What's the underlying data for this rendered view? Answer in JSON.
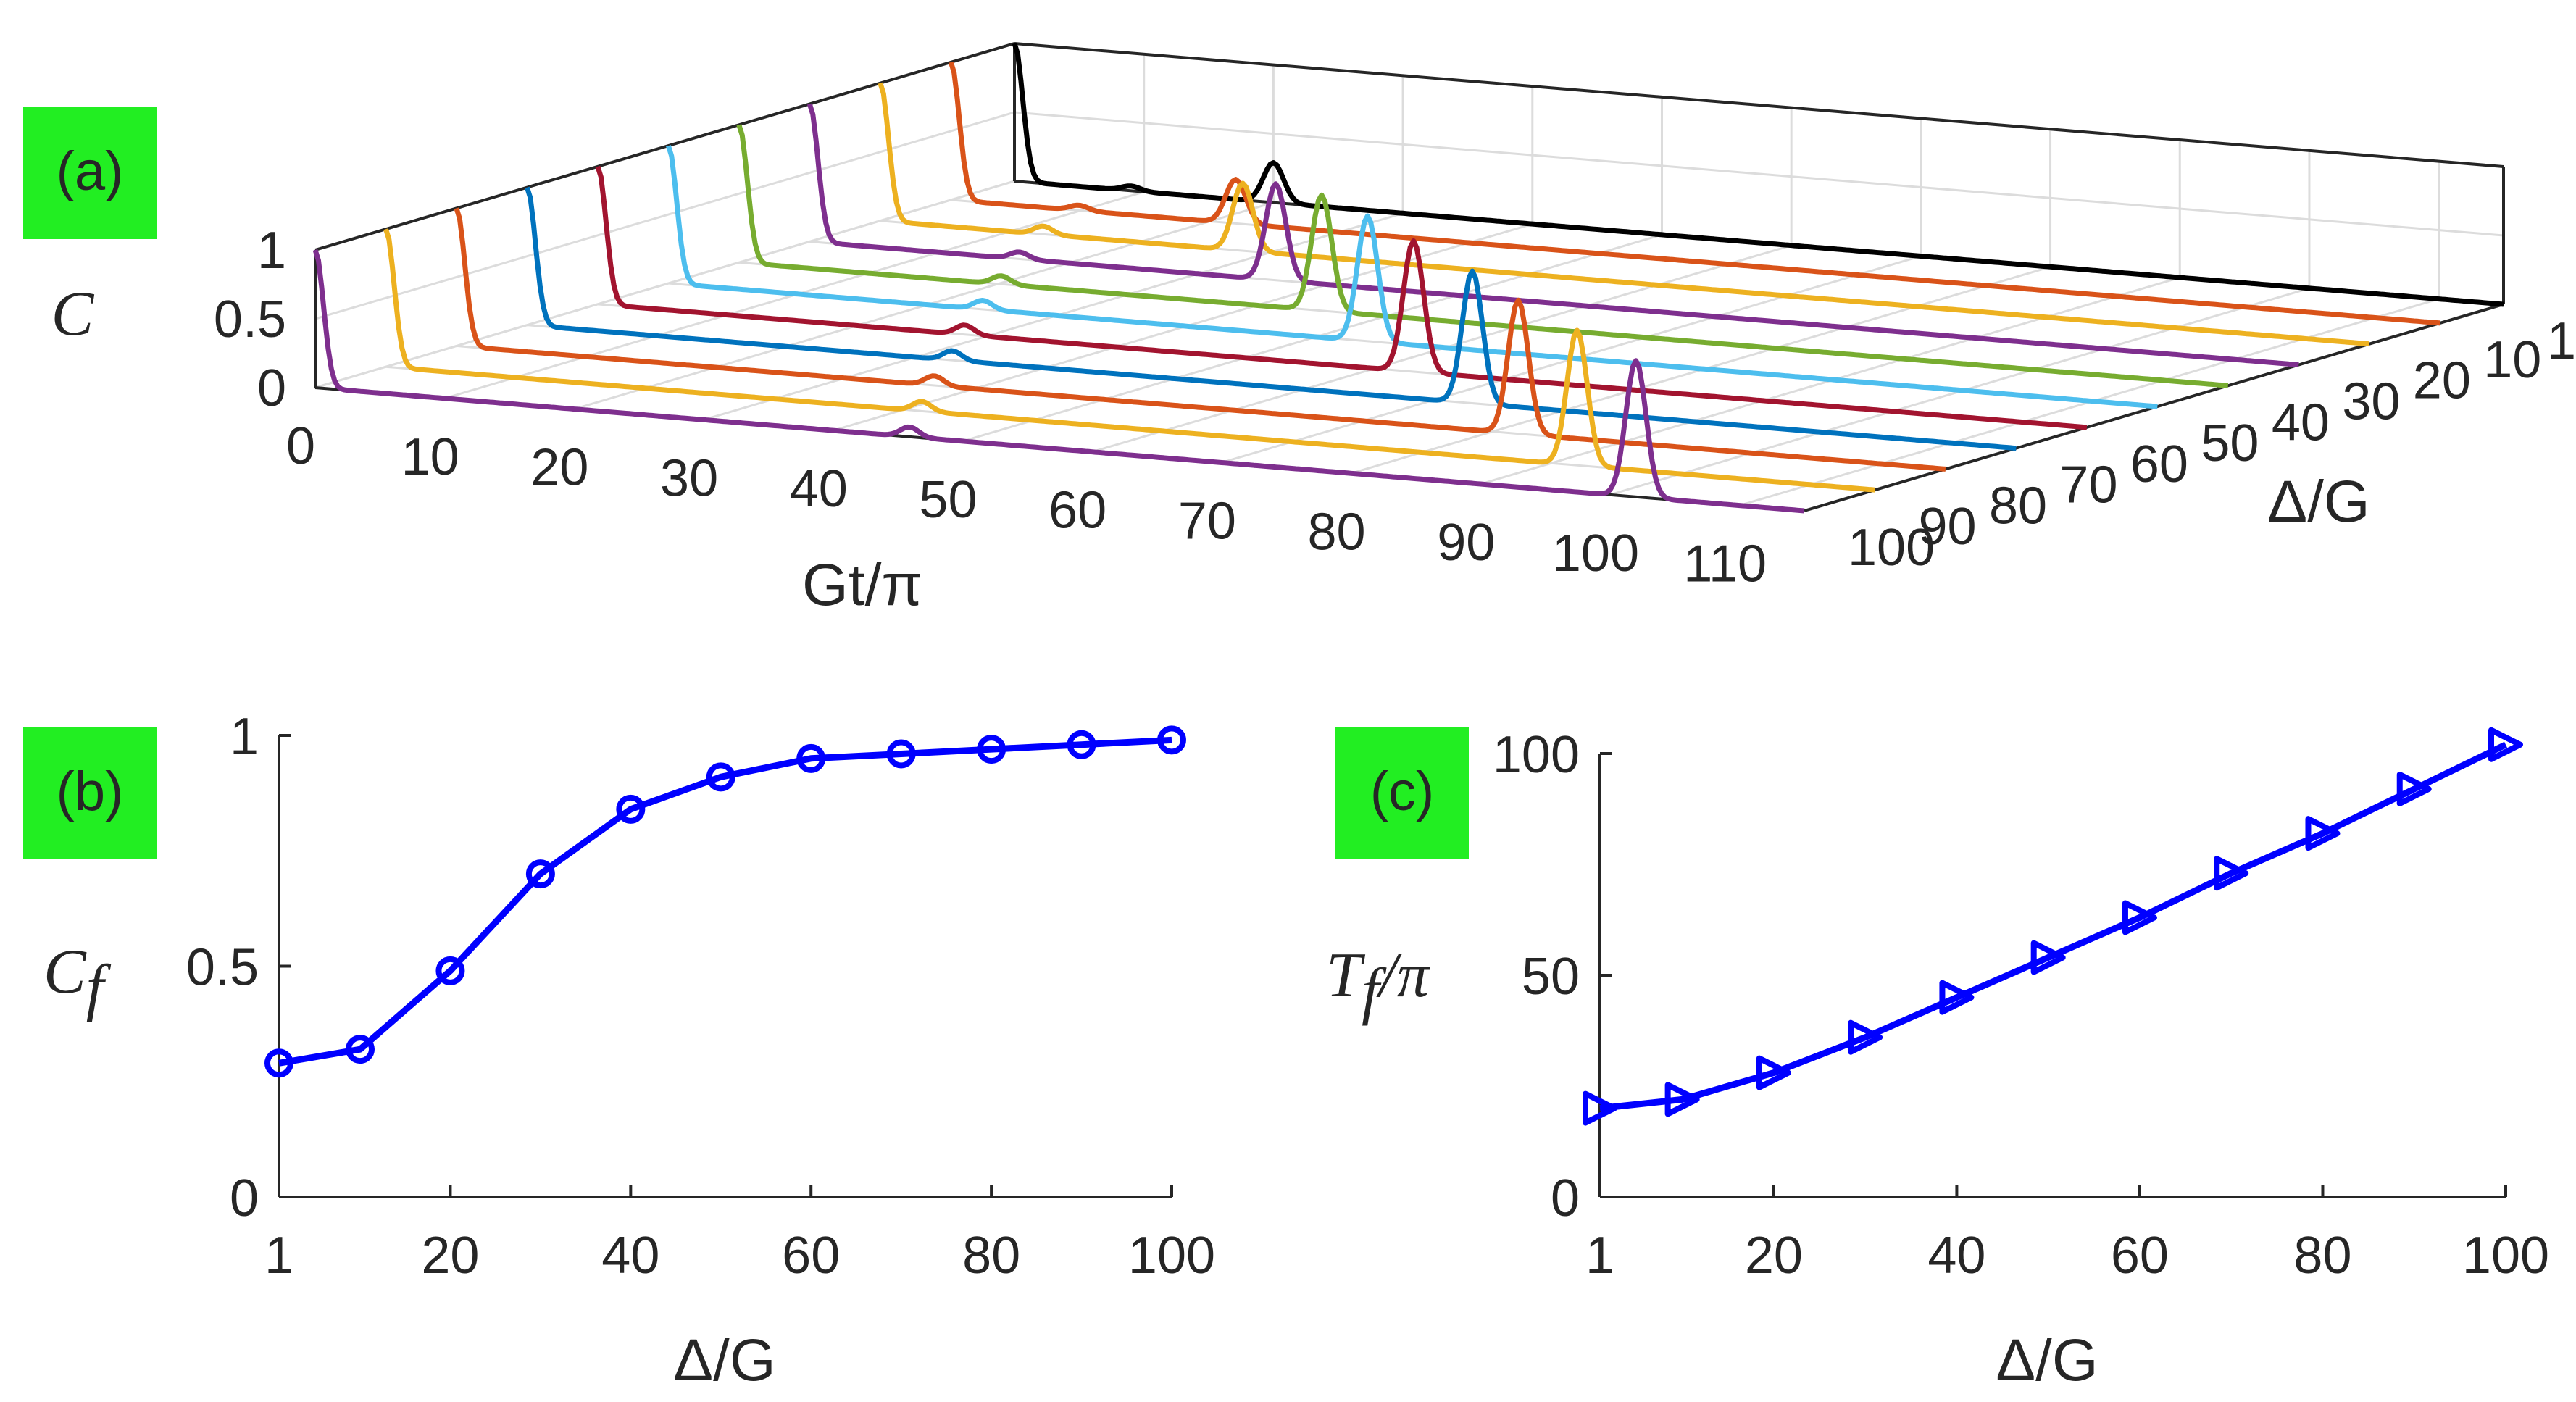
{
  "colors": {
    "marker": "#0000ff",
    "tag_bg": "#22ee22",
    "axis": "#262626",
    "grid": "#dcdcdc",
    "series_palette": [
      "#7e2f8e",
      "#edb120",
      "#d95319",
      "#0072bd",
      "#a2142f",
      "#4dbeee",
      "#77ac30",
      "#7e2f8e",
      "#edb120",
      "#d95319",
      "#000000"
    ]
  },
  "chart_data": [
    {
      "id": "a",
      "type": "line3d",
      "panel_label": "(a)",
      "xlabel": "Gt/π",
      "ylabel": "Δ/G",
      "zlabel": "C",
      "xlim": [
        0,
        115
      ],
      "zlim": [
        0,
        1
      ],
      "x_ticks": [
        0,
        10,
        20,
        30,
        40,
        50,
        60,
        70,
        80,
        90,
        100,
        110
      ],
      "x_tick_labels": [
        "0",
        "10",
        "20",
        "30",
        "40",
        "50",
        "60",
        "70",
        "80",
        "90",
        "100",
        "110"
      ],
      "y_ticks": [
        1,
        10,
        20,
        30,
        40,
        50,
        60,
        70,
        80,
        90,
        100
      ],
      "y_tick_labels": [
        "1",
        "10",
        "20",
        "30",
        "40",
        "50",
        "60",
        "70",
        "80",
        "90",
        "100"
      ],
      "z_ticks": [
        0,
        0.5,
        1
      ],
      "z_tick_labels": [
        "0",
        "0.5",
        "1"
      ],
      "series": [
        {
          "delta": 100,
          "color": "#7e2f8e",
          "peak_t": 102,
          "peak_c": 0.99
        },
        {
          "delta": 90,
          "color": "#edb120",
          "peak_t": 92,
          "peak_c": 0.98
        },
        {
          "delta": 80,
          "color": "#d95319",
          "peak_t": 82,
          "peak_c": 0.97
        },
        {
          "delta": 70,
          "color": "#0072bd",
          "peak_t": 73,
          "peak_c": 0.96
        },
        {
          "delta": 60,
          "color": "#a2142f",
          "peak_t": 63,
          "peak_c": 0.95
        },
        {
          "delta": 50,
          "color": "#4dbeee",
          "peak_t": 54,
          "peak_c": 0.91
        },
        {
          "delta": 40,
          "color": "#77ac30",
          "peak_t": 45,
          "peak_c": 0.84
        },
        {
          "delta": 30,
          "color": "#7e2f8e",
          "peak_t": 36,
          "peak_c": 0.7
        },
        {
          "delta": 20,
          "color": "#edb120",
          "peak_t": 28,
          "peak_c": 0.49
        },
        {
          "delta": 10,
          "color": "#d95319",
          "peak_t": 22,
          "peak_c": 0.32
        },
        {
          "delta": 1,
          "color": "#000000",
          "peak_t": 20,
          "peak_c": 0.29
        }
      ]
    },
    {
      "id": "b",
      "type": "line",
      "panel_label": "(b)",
      "xlabel": "Δ/G",
      "ylabel": "C",
      "ylabel_sub": "f",
      "xlim": [
        1,
        100
      ],
      "ylim": [
        0,
        1
      ],
      "x_ticks": [
        1,
        20,
        40,
        60,
        80,
        100
      ],
      "x_tick_labels": [
        "1",
        "20",
        "40",
        "60",
        "80",
        "100"
      ],
      "y_ticks": [
        0,
        0.5,
        1
      ],
      "y_tick_labels": [
        "0",
        "0.5",
        "1"
      ],
      "marker": "circle",
      "x": [
        1,
        10,
        20,
        30,
        40,
        50,
        60,
        70,
        80,
        90,
        100
      ],
      "y": [
        0.29,
        0.32,
        0.49,
        0.7,
        0.84,
        0.91,
        0.95,
        0.96,
        0.97,
        0.98,
        0.99
      ]
    },
    {
      "id": "c",
      "type": "line",
      "panel_label": "(c)",
      "xlabel": "Δ/G",
      "ylabel": "T",
      "ylabel_sub": "f",
      "ylabel_suffix": "/π",
      "xlim": [
        1,
        100
      ],
      "ylim": [
        0,
        100
      ],
      "x_ticks": [
        1,
        20,
        40,
        60,
        80,
        100
      ],
      "x_tick_labels": [
        "1",
        "20",
        "40",
        "60",
        "80",
        "100"
      ],
      "y_ticks": [
        0,
        50,
        100
      ],
      "y_tick_labels": [
        "0",
        "50",
        "100"
      ],
      "marker": "triangle-right",
      "x": [
        1,
        10,
        20,
        30,
        40,
        50,
        60,
        70,
        80,
        90,
        100
      ],
      "y": [
        20,
        22,
        28,
        36,
        45,
        54,
        63,
        73,
        82,
        92,
        102
      ]
    }
  ]
}
